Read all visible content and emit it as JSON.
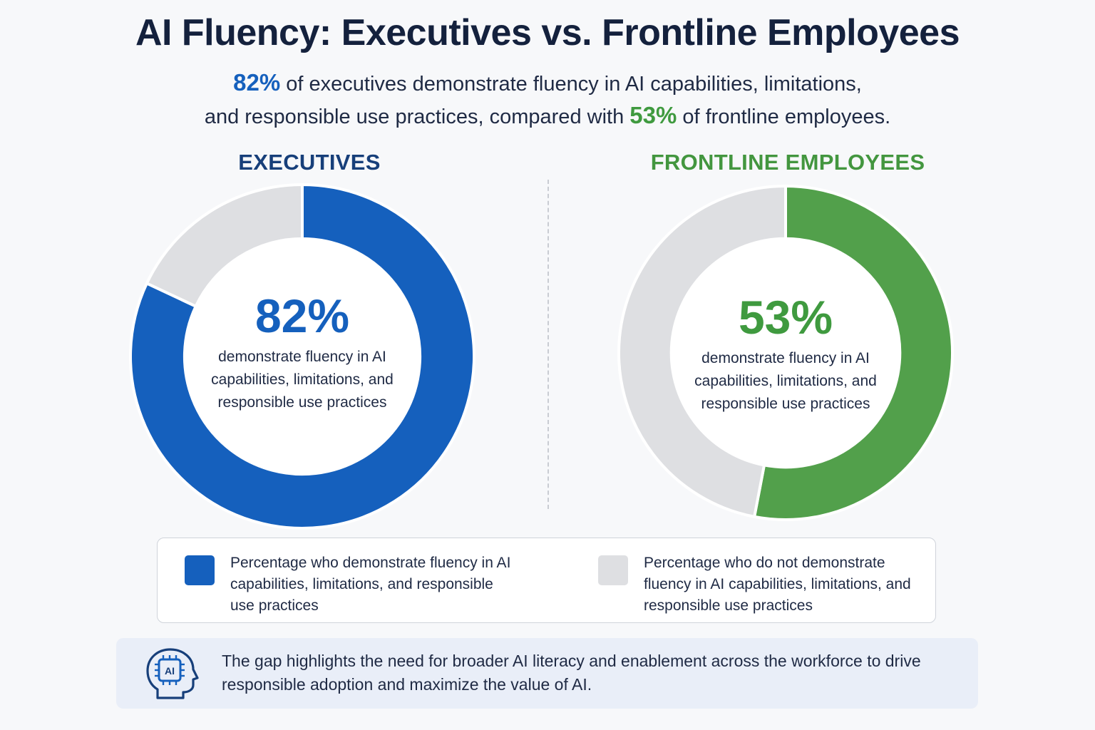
{
  "title": "AI Fluency: Executives vs. Frontline Employees",
  "subtitle": {
    "exec_pct": "82%",
    "part1": " of executives demonstrate fluency in AI capabilities, limitations,",
    "part2": "and responsible use practices, compared with ",
    "front_pct": "53%",
    "part3": " of frontline employees."
  },
  "panels": {
    "executives": {
      "heading": "EXECUTIVES",
      "center_value": "82%",
      "center_description": "demonstrate fluency in AI capabilities, limitations, and responsible use practices"
    },
    "frontline": {
      "heading": "FRONTLINE EMPLOYEES",
      "center_value": "53%",
      "center_description": "demonstrate fluency in AI capabilities, limitations, and responsible use practices"
    }
  },
  "legend": {
    "fluent": "Percentage who demonstrate fluency in AI capabilities, limitations, and responsible use practices",
    "not_fluent": "Percentage who do not demonstrate fluency in AI capabilities, limitations, and responsible use practices"
  },
  "callout": {
    "icon": "ai-head-chip-icon",
    "icon_label": "AI",
    "text": "The gap highlights the need for broader AI literacy and enablement across the workforce to drive responsible adoption and maximize the value of AI."
  },
  "colors": {
    "exec_blue": "#1560bd",
    "front_green": "#52a04b",
    "remainder_gray": "#dedfe2",
    "heading_navy": "#173f7a"
  },
  "chart_data": [
    {
      "type": "pie",
      "title": "EXECUTIVES",
      "categories": [
        "Percentage who demonstrate fluency in AI capabilities, limitations, and responsible use practices",
        "Percentage who do not demonstrate fluency in AI capabilities, limitations, and responsible use practices"
      ],
      "values": [
        82,
        18
      ],
      "colors": [
        "#1560bd",
        "#dedfe2"
      ],
      "donut": true,
      "legend": "bottom"
    },
    {
      "type": "pie",
      "title": "FRONTLINE EMPLOYEES",
      "categories": [
        "Percentage who demonstrate fluency in AI capabilities, limitations, and responsible use practices",
        "Percentage who do not demonstrate fluency in AI capabilities, limitations, and responsible use practices"
      ],
      "values": [
        53,
        47
      ],
      "colors": [
        "#52a04b",
        "#dedfe2"
      ],
      "donut": true,
      "legend": "bottom"
    }
  ]
}
